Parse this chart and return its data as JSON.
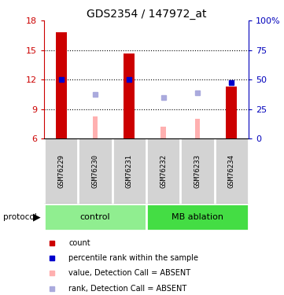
{
  "title": "GDS2354 / 147972_at",
  "samples": [
    "GSM76229",
    "GSM76230",
    "GSM76231",
    "GSM76232",
    "GSM76233",
    "GSM76234"
  ],
  "group_colors": {
    "control": "#90EE90",
    "MB ablation": "#44DD44"
  },
  "bar_values": [
    16.8,
    6.0,
    14.7,
    6.0,
    6.0,
    11.3
  ],
  "bar_base": 6.0,
  "bar_color": "#CC0000",
  "pink_bar_values": [
    6.0,
    8.3,
    6.0,
    7.2,
    8.0,
    6.0
  ],
  "pink_color": "#FFB0B0",
  "blue_dot_values": [
    12.0,
    null,
    12.0,
    null,
    null,
    11.7
  ],
  "blue_dot_color": "#0000CC",
  "lavender_dot_values": [
    null,
    10.5,
    null,
    10.2,
    10.7,
    null
  ],
  "lavender_dot_color": "#AAAADD",
  "ylim": [
    6,
    18
  ],
  "yticks": [
    6,
    9,
    12,
    15,
    18
  ],
  "right_yticks": [
    0,
    25,
    50,
    75,
    100
  ],
  "right_ylabels": [
    "0",
    "25",
    "50",
    "75",
    "100%"
  ],
  "dotted_lines": [
    9,
    12,
    15
  ],
  "left_axis_color": "#CC0000",
  "right_axis_color": "#0000BB",
  "legend_items": [
    {
      "color": "#CC0000",
      "label": "count"
    },
    {
      "color": "#0000CC",
      "label": "percentile rank within the sample"
    },
    {
      "color": "#FFB0B0",
      "label": "value, Detection Call = ABSENT"
    },
    {
      "color": "#AAAADD",
      "label": "rank, Detection Call = ABSENT"
    }
  ],
  "protocol_label": "protocol",
  "figsize": [
    3.61,
    3.75
  ],
  "dpi": 100
}
